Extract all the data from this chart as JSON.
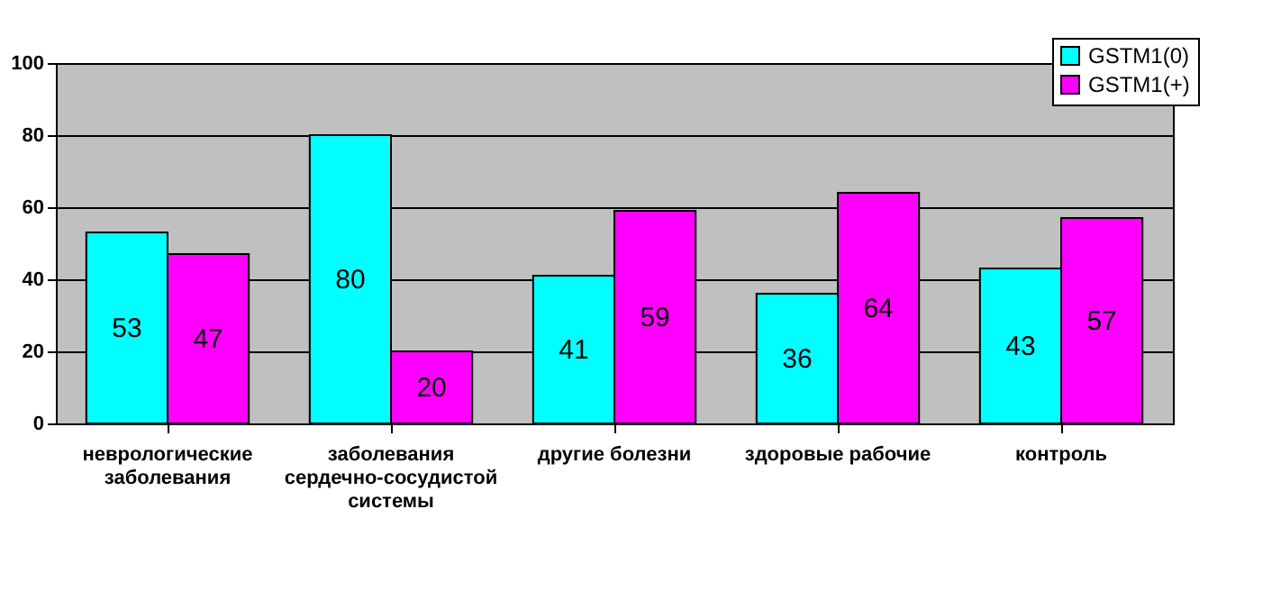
{
  "chart_data": {
    "type": "bar",
    "categories": [
      "неврологические заболевания",
      "заболевания сердечно-сосудистой системы",
      "другие болезни",
      "здоровые рабочие",
      "контроль"
    ],
    "series": [
      {
        "name": "GSTM1(0)",
        "color": "#00ffff",
        "values": [
          53,
          80,
          41,
          36,
          43
        ]
      },
      {
        "name": "GSTM1(+)",
        "color": "#ff00ff",
        "values": [
          47,
          20,
          59,
          64,
          57
        ]
      }
    ],
    "ylim": [
      0,
      100
    ],
    "yticks": [
      0,
      20,
      40,
      60,
      80,
      100
    ],
    "grid": "y",
    "legend": "top right",
    "data_labels": true
  }
}
